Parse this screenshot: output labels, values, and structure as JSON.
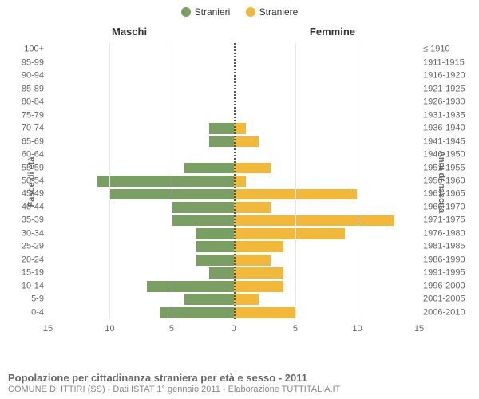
{
  "legend": {
    "male": {
      "label": "Stranieri",
      "color": "#7a9f62"
    },
    "female": {
      "label": "Straniere",
      "color": "#f2b83a"
    }
  },
  "columns": {
    "male": "Maschi",
    "female": "Femmine"
  },
  "axis_titles": {
    "left": "Fasce di età",
    "right": "Anni di nascita"
  },
  "chart": {
    "type": "population-pyramid",
    "x_max": 15,
    "x_ticks": [
      15,
      10,
      5,
      0,
      5,
      10,
      15
    ],
    "grid_color": "#e6e6e6",
    "zero_color": "#555555",
    "background": "#ffffff",
    "bar_colors": {
      "male": "#7a9f62",
      "female": "#f2b83a"
    },
    "label_fontsize": 11,
    "title_fontsize": 13
  },
  "age_labels": [
    "100+",
    "95-99",
    "90-94",
    "85-89",
    "80-84",
    "75-79",
    "70-74",
    "65-69",
    "60-64",
    "55-59",
    "50-54",
    "45-49",
    "40-44",
    "35-39",
    "30-34",
    "25-29",
    "20-24",
    "15-19",
    "10-14",
    "5-9",
    "0-4"
  ],
  "year_labels": [
    "≤ 1910",
    "1911-1915",
    "1916-1920",
    "1921-1925",
    "1926-1930",
    "1931-1935",
    "1936-1940",
    "1941-1945",
    "1946-1950",
    "1951-1955",
    "1956-1960",
    "1961-1965",
    "1966-1970",
    "1971-1975",
    "1976-1980",
    "1981-1985",
    "1986-1990",
    "1991-1995",
    "1996-2000",
    "2001-2005",
    "2006-2010"
  ],
  "male_values": [
    0,
    0,
    0,
    0,
    0,
    0,
    2,
    2,
    0,
    4,
    11,
    10,
    5,
    5,
    3,
    3,
    3,
    2,
    7,
    4,
    6
  ],
  "female_values": [
    0,
    0,
    0,
    0,
    0,
    0,
    1,
    2,
    0,
    3,
    1,
    10,
    3,
    13,
    9,
    4,
    3,
    4,
    4,
    2,
    5
  ],
  "caption": {
    "title": "Popolazione per cittadinanza straniera per età e sesso - 2011",
    "subtitle": "COMUNE DI ITTIRI (SS) - Dati ISTAT 1° gennaio 2011 - Elaborazione TUTTITALIA.IT"
  }
}
